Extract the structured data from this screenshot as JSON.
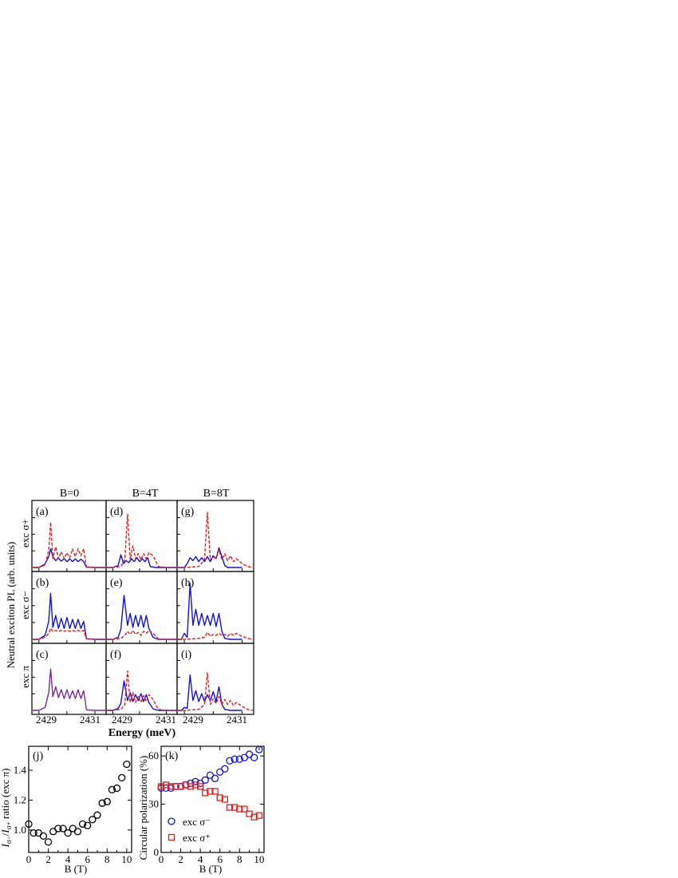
{
  "figure": {
    "col_headers": [
      "B=0",
      "B=4T",
      "B=8T"
    ],
    "row_labels": [
      {
        "text": "exc σ+",
        "color": "#e0201e"
      },
      {
        "text": "exc σ−",
        "color": "#1010e0"
      },
      {
        "text": "exc π",
        "color": "#000000"
      }
    ],
    "ylabel_spectra": "Neutral exciton PL (arb. units)",
    "xlabel_spectra": "Energy (meV)",
    "xticks_spectra": [
      "2429",
      "2431"
    ],
    "panel_letters": [
      "(a)",
      "(b)",
      "(c)",
      "(d)",
      "(e)",
      "(f)",
      "(g)",
      "(h)",
      "(i)"
    ],
    "colors": {
      "sigma_plus": "#e0201e",
      "sigma_minus": "#1010e0",
      "pi": "#7a2a9a"
    }
  },
  "chart_data": [
    {
      "type": "line",
      "panel": "(a)",
      "field_T": 0,
      "excitation": "σ+",
      "series": [
        {
          "style": "solid",
          "color": "#1010e0",
          "x": [
            2428.5,
            2429.0,
            2429.22,
            2429.35,
            2429.42,
            2429.5,
            2429.6,
            2429.7,
            2429.8,
            2429.9,
            2430.0,
            2430.1,
            2430.2,
            2430.3,
            2430.4,
            2430.5,
            2430.6,
            2430.7,
            2431.0,
            2431.5
          ],
          "y": [
            0.0,
            0.0,
            0.18,
            0.55,
            0.95,
            0.55,
            0.35,
            0.48,
            0.32,
            0.45,
            0.3,
            0.44,
            0.3,
            0.44,
            0.3,
            0.42,
            0.3,
            0.02,
            0.0,
            0.0
          ]
        },
        {
          "style": "dashed",
          "color": "#e0201e",
          "x": [
            2428.5,
            2429.0,
            2429.22,
            2429.35,
            2429.42,
            2429.5,
            2429.6,
            2429.7,
            2429.8,
            2429.9,
            2430.0,
            2430.1,
            2430.2,
            2430.3,
            2430.4,
            2430.5,
            2430.6,
            2430.7,
            2431.0,
            2431.5
          ],
          "y": [
            0.0,
            0.0,
            0.12,
            0.9,
            2.3,
            0.45,
            1.05,
            0.45,
            0.8,
            0.45,
            0.75,
            0.5,
            0.95,
            0.55,
            0.95,
            0.6,
            0.95,
            0.03,
            0.0,
            0.0
          ]
        }
      ]
    },
    {
      "type": "line",
      "panel": "(d)",
      "field_T": 4,
      "excitation": "σ+",
      "series": [
        {
          "style": "solid",
          "color": "#1010e0",
          "x": [
            2428.5,
            2429.0,
            2429.2,
            2429.3,
            2429.4,
            2429.5,
            2429.6,
            2429.7,
            2429.8,
            2429.9,
            2430.0,
            2430.1,
            2430.2,
            2430.3,
            2430.4,
            2430.6,
            2431.0,
            2431.5
          ],
          "y": [
            0.0,
            0.0,
            0.1,
            0.65,
            0.2,
            0.35,
            0.25,
            0.45,
            0.3,
            0.5,
            0.3,
            0.45,
            0.3,
            0.5,
            0.05,
            0.0,
            0.0,
            0.0
          ]
        },
        {
          "style": "dashed",
          "color": "#e0201e",
          "x": [
            2428.5,
            2429.0,
            2429.3,
            2429.45,
            2429.55,
            2429.65,
            2429.75,
            2429.85,
            2429.95,
            2430.05,
            2430.15,
            2430.25,
            2430.35,
            2430.5,
            2430.7,
            2431.0,
            2431.5
          ],
          "y": [
            0.0,
            0.0,
            0.05,
            0.4,
            2.7,
            0.4,
            1.1,
            0.45,
            0.7,
            0.4,
            0.7,
            0.45,
            0.75,
            0.6,
            0.05,
            0.0,
            0.0
          ]
        }
      ]
    },
    {
      "type": "line",
      "panel": "(g)",
      "field_T": 8,
      "excitation": "σ+",
      "series": [
        {
          "style": "solid",
          "color": "#1010e0",
          "x": [
            2428.5,
            2429.0,
            2429.1,
            2429.2,
            2429.3,
            2429.4,
            2429.5,
            2429.6,
            2429.7,
            2429.8,
            2429.9,
            2430.0,
            2430.1,
            2430.2,
            2430.3,
            2430.4,
            2430.5,
            2430.7,
            2431.0
          ],
          "y": [
            0.0,
            0.0,
            0.2,
            0.5,
            0.35,
            0.55,
            0.3,
            0.5,
            0.3,
            0.55,
            0.3,
            0.6,
            0.45,
            1.0,
            0.55,
            0.1,
            0.0,
            0.0,
            0.0
          ]
        },
        {
          "style": "dashed",
          "color": "#e0201e",
          "x": [
            2428.5,
            2429.0,
            2429.5,
            2429.7,
            2429.8,
            2429.9,
            2430.0,
            2430.1,
            2430.2,
            2430.3,
            2430.4,
            2430.5,
            2430.6,
            2430.7,
            2430.8,
            2431.0,
            2431.2,
            2431.5
          ],
          "y": [
            0.0,
            0.0,
            0.05,
            0.4,
            2.8,
            0.4,
            0.55,
            0.45,
            0.9,
            0.4,
            0.7,
            0.35,
            0.6,
            0.3,
            0.45,
            0.2,
            0.05,
            0.0
          ]
        }
      ]
    },
    {
      "type": "line",
      "panel": "(b)",
      "field_T": 0,
      "excitation": "σ−",
      "series": [
        {
          "style": "solid",
          "color": "#1010e0",
          "x": [
            2428.5,
            2429.0,
            2429.22,
            2429.35,
            2429.42,
            2429.5,
            2429.6,
            2429.7,
            2429.8,
            2429.9,
            2430.0,
            2430.1,
            2430.2,
            2430.3,
            2430.4,
            2430.5,
            2430.6,
            2430.7,
            2431.0,
            2431.5
          ],
          "y": [
            0.0,
            0.0,
            0.2,
            0.9,
            2.3,
            0.6,
            1.2,
            0.55,
            1.05,
            0.55,
            1.1,
            0.55,
            1.0,
            0.55,
            1.0,
            0.55,
            0.9,
            0.03,
            0.0,
            0.0
          ]
        },
        {
          "style": "dashed",
          "color": "#e0201e",
          "x": [
            2428.5,
            2429.0,
            2429.22,
            2429.35,
            2429.42,
            2429.5,
            2429.6,
            2429.7,
            2429.8,
            2429.9,
            2430.0,
            2430.1,
            2430.2,
            2430.3,
            2430.4,
            2430.5,
            2430.6,
            2430.7,
            2431.0,
            2431.5
          ],
          "y": [
            0.0,
            0.0,
            0.1,
            0.3,
            0.55,
            0.4,
            0.45,
            0.4,
            0.45,
            0.4,
            0.45,
            0.4,
            0.45,
            0.4,
            0.45,
            0.4,
            0.45,
            0.02,
            0.0,
            0.0
          ]
        }
      ]
    },
    {
      "type": "line",
      "panel": "(e)",
      "field_T": 4,
      "excitation": "σ−",
      "series": [
        {
          "style": "solid",
          "color": "#1010e0",
          "x": [
            2428.5,
            2429.0,
            2429.2,
            2429.3,
            2429.42,
            2429.55,
            2429.65,
            2429.75,
            2429.85,
            2429.95,
            2430.05,
            2430.15,
            2430.25,
            2430.35,
            2430.5,
            2430.7,
            2431.0,
            2431.5
          ],
          "y": [
            0.0,
            0.0,
            0.1,
            0.5,
            2.2,
            0.7,
            1.3,
            0.6,
            1.2,
            0.65,
            1.2,
            0.6,
            1.2,
            0.55,
            0.1,
            0.0,
            0.0,
            0.0
          ]
        },
        {
          "style": "dashed",
          "color": "#e0201e",
          "x": [
            2428.5,
            2429.0,
            2429.3,
            2429.45,
            2429.55,
            2429.65,
            2429.75,
            2429.85,
            2429.95,
            2430.05,
            2430.15,
            2430.25,
            2430.35,
            2430.5,
            2430.7,
            2431.0,
            2431.5
          ],
          "y": [
            0.0,
            0.0,
            0.05,
            0.2,
            0.4,
            0.25,
            0.45,
            0.25,
            0.35,
            0.2,
            0.4,
            0.3,
            0.45,
            0.3,
            0.02,
            0.0,
            0.0
          ]
        }
      ]
    },
    {
      "type": "line",
      "panel": "(h)",
      "field_T": 8,
      "excitation": "σ−",
      "series": [
        {
          "style": "solid",
          "color": "#1010e0",
          "x": [
            2428.5,
            2428.9,
            2429.0,
            2429.1,
            2429.2,
            2429.3,
            2429.4,
            2429.5,
            2429.6,
            2429.7,
            2429.8,
            2429.9,
            2430.0,
            2430.1,
            2430.2,
            2430.3,
            2430.4,
            2430.6,
            2431.0
          ],
          "y": [
            0.0,
            0.0,
            0.3,
            0.1,
            2.8,
            0.7,
            1.5,
            0.7,
            1.3,
            0.7,
            1.2,
            0.7,
            1.3,
            0.65,
            1.3,
            0.4,
            0.05,
            0.0,
            0.0
          ]
        },
        {
          "style": "dashed",
          "color": "#e0201e",
          "x": [
            2428.5,
            2429.0,
            2429.5,
            2429.7,
            2429.8,
            2429.9,
            2430.0,
            2430.1,
            2430.2,
            2430.3,
            2430.4,
            2430.5,
            2430.6,
            2430.7,
            2430.8,
            2431.0,
            2431.2,
            2431.5
          ],
          "y": [
            0.0,
            0.0,
            0.05,
            0.1,
            0.35,
            0.15,
            0.25,
            0.2,
            0.3,
            0.2,
            0.25,
            0.15,
            0.3,
            0.2,
            0.3,
            0.15,
            0.05,
            0.0
          ]
        }
      ]
    },
    {
      "type": "line",
      "panel": "(c)",
      "field_T": 0,
      "excitation": "π",
      "series": [
        {
          "style": "solid",
          "color": "#7a2a9a",
          "x": [
            2428.5,
            2429.0,
            2429.22,
            2429.35,
            2429.42,
            2429.5,
            2429.6,
            2429.7,
            2429.8,
            2429.9,
            2430.0,
            2430.1,
            2430.2,
            2430.3,
            2430.4,
            2430.5,
            2430.6,
            2430.7,
            2431.0,
            2431.5
          ],
          "y": [
            0.0,
            0.0,
            0.15,
            0.9,
            2.1,
            0.7,
            1.2,
            0.65,
            1.05,
            0.6,
            1.05,
            0.6,
            1.0,
            0.6,
            1.05,
            0.6,
            1.0,
            0.03,
            0.0,
            0.0
          ]
        }
      ]
    },
    {
      "type": "line",
      "panel": "(f)",
      "field_T": 4,
      "excitation": "π",
      "series": [
        {
          "style": "solid",
          "color": "#1010e0",
          "x": [
            2428.5,
            2429.0,
            2429.2,
            2429.3,
            2429.42,
            2429.55,
            2429.65,
            2429.75,
            2429.85,
            2429.95,
            2430.05,
            2430.15,
            2430.25,
            2430.35,
            2430.5,
            2430.7,
            2431.0,
            2431.5
          ],
          "y": [
            0.0,
            0.0,
            0.1,
            0.35,
            1.5,
            0.5,
            0.9,
            0.45,
            0.8,
            0.5,
            0.85,
            0.45,
            0.8,
            0.4,
            0.08,
            0.0,
            0.0,
            0.0
          ]
        },
        {
          "style": "dashed",
          "color": "#e0201e",
          "x": [
            2428.5,
            2429.0,
            2429.3,
            2429.45,
            2429.55,
            2429.65,
            2429.75,
            2429.85,
            2429.95,
            2430.05,
            2430.15,
            2430.25,
            2430.35,
            2430.5,
            2430.7,
            2431.0,
            2431.5
          ],
          "y": [
            0.0,
            0.0,
            0.05,
            0.3,
            2.0,
            0.4,
            0.9,
            0.4,
            0.7,
            0.4,
            0.75,
            0.45,
            0.8,
            0.55,
            0.05,
            0.0,
            0.0
          ]
        }
      ]
    },
    {
      "type": "line",
      "panel": "(i)",
      "field_T": 8,
      "excitation": "π",
      "series": [
        {
          "style": "solid",
          "color": "#1010e0",
          "x": [
            2428.5,
            2428.9,
            2429.0,
            2429.1,
            2429.2,
            2429.3,
            2429.4,
            2429.5,
            2429.6,
            2429.7,
            2429.8,
            2429.9,
            2430.0,
            2430.1,
            2430.2,
            2430.3,
            2430.4,
            2430.6,
            2431.0
          ],
          "y": [
            0.0,
            0.0,
            0.15,
            0.1,
            1.8,
            0.5,
            1.0,
            0.45,
            0.85,
            0.45,
            0.8,
            0.5,
            0.95,
            0.45,
            1.2,
            0.3,
            0.05,
            0.0,
            0.0
          ]
        },
        {
          "style": "dashed",
          "color": "#e0201e",
          "x": [
            2428.5,
            2429.0,
            2429.5,
            2429.7,
            2429.8,
            2429.9,
            2430.0,
            2430.1,
            2430.2,
            2430.3,
            2430.4,
            2430.5,
            2430.6,
            2430.7,
            2430.8,
            2431.0,
            2431.2,
            2431.5
          ],
          "y": [
            0.0,
            0.0,
            0.05,
            0.3,
            1.9,
            0.3,
            0.6,
            0.35,
            0.7,
            0.3,
            0.55,
            0.3,
            0.5,
            0.25,
            0.4,
            0.2,
            0.05,
            0.0
          ]
        }
      ]
    },
    {
      "type": "scatter",
      "panel": "(j)",
      "xlabel": "B (T)",
      "ylabel": "I_σ−/I_σ+ ratio (exc π)",
      "xlim": [
        0,
        10.5
      ],
      "ylim": [
        0.85,
        1.56
      ],
      "xticks": [
        0,
        2,
        4,
        6,
        8,
        10
      ],
      "yticks": [
        1.0,
        1.2,
        1.4
      ],
      "series": [
        {
          "marker": "circle",
          "color": "#000000",
          "x": [
            0.0,
            0.5,
            1.0,
            1.5,
            2.0,
            2.5,
            3.0,
            3.5,
            4.0,
            4.5,
            5.0,
            5.5,
            6.0,
            6.5,
            7.0,
            7.5,
            8.0,
            8.5,
            9.0,
            9.5,
            10.0
          ],
          "y": [
            1.04,
            0.98,
            0.98,
            0.96,
            0.92,
            0.99,
            1.01,
            1.01,
            0.98,
            1.01,
            0.99,
            1.04,
            1.03,
            1.07,
            1.1,
            1.18,
            1.19,
            1.27,
            1.28,
            1.35,
            1.44
          ]
        }
      ]
    },
    {
      "type": "scatter",
      "panel": "(k)",
      "xlabel": "B (T)",
      "ylabel": "Circular polarization (%)",
      "xlim": [
        0,
        10.5
      ],
      "ylim": [
        0,
        66
      ],
      "xticks": [
        0,
        2,
        4,
        6,
        8,
        10
      ],
      "yticks": [
        0,
        30,
        60
      ],
      "legend_position": "bottom-left",
      "series": [
        {
          "name": "exc σ⁻",
          "marker": "circle",
          "color": "#1010e0",
          "x": [
            0.0,
            0.5,
            1.0,
            1.5,
            2.0,
            2.5,
            3.0,
            3.5,
            4.0,
            4.5,
            5.0,
            5.5,
            6.0,
            6.5,
            7.0,
            7.5,
            8.0,
            8.5,
            9.0,
            9.5,
            10.0
          ],
          "y": [
            40,
            40,
            40,
            41,
            41,
            42,
            43,
            44,
            43,
            45,
            48,
            46,
            50,
            52,
            57,
            58,
            58,
            59,
            61,
            59,
            64
          ]
        },
        {
          "name": "exc σ⁺",
          "marker": "square",
          "color": "#e0201e",
          "x": [
            0.0,
            0.5,
            1.0,
            1.5,
            2.0,
            2.5,
            3.0,
            3.5,
            4.0,
            4.5,
            5.0,
            5.5,
            6.0,
            6.5,
            7.0,
            7.5,
            8.0,
            8.5,
            9.0,
            9.5,
            10.0
          ],
          "y": [
            41,
            42,
            41,
            41,
            41,
            42,
            41,
            42,
            41,
            37,
            38,
            38,
            34,
            33,
            28,
            28,
            27,
            27,
            24,
            22,
            23
          ]
        }
      ]
    }
  ]
}
